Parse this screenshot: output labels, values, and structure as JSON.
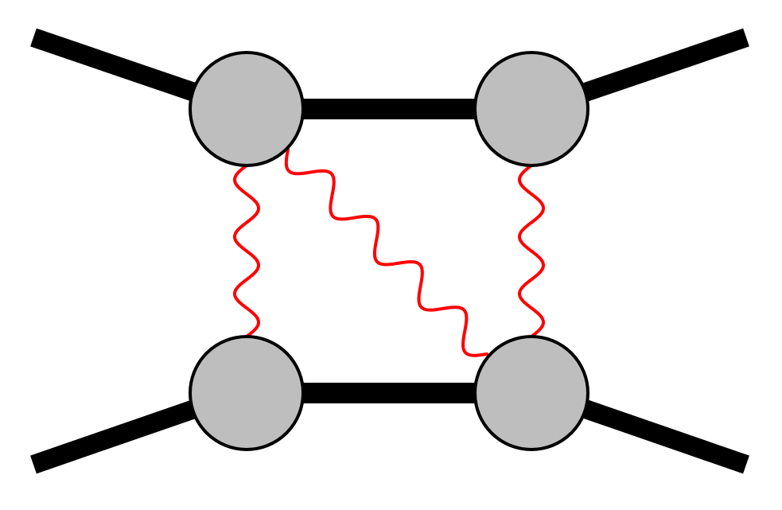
{
  "diagram": {
    "kind": "feynman-diagram",
    "description_nodes": [
      "blob-top-left",
      "blob-top-right",
      "blob-bottom-left",
      "blob-bottom-right"
    ],
    "external_lines": 4,
    "internal_lines": 2,
    "photon_exchanges": 3
  },
  "colors": {
    "background": "#ffffff",
    "line": "#000000",
    "blob_fill": "#bebebe",
    "blob_stroke": "#000000",
    "photon": "#ff0000"
  }
}
